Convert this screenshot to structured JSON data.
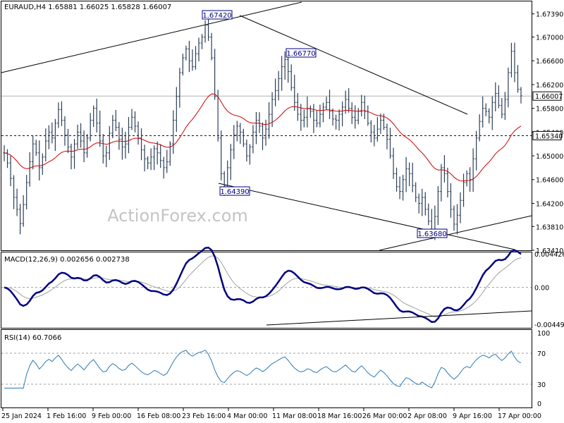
{
  "chart_data": {
    "type": "candlestick",
    "symbol_label": "EURAUD,H4",
    "ohlc": [
      "1.65881",
      "1.66025",
      "1.65828",
      "1.66007"
    ],
    "watermark": "ActionForex.com",
    "x_ticks": [
      "25 Jan 2024",
      "1 Feb 16:00",
      "9 Feb 00:00",
      "16 Feb 08:00",
      "23 Feb 16:00",
      "4 Mar 00:00",
      "11 Mar 08:00",
      "18 Mar 16:00",
      "26 Mar 00:00",
      "2 Apr 08:00",
      "9 Apr 16:00",
      "17 Apr 00:00"
    ],
    "price_axis": {
      "ylim": [
        1.6341,
        1.676
      ],
      "ticks": [
        "1.67390",
        "1.67000",
        "1.66600",
        "1.66200",
        "1.65800",
        "1.65400",
        "1.65000",
        "1.64600",
        "1.64200",
        "1.63810",
        "1.63410"
      ],
      "current_price": "1.66007",
      "support_level": "1.65340"
    },
    "annotations": [
      "1.67420",
      "1.66770",
      "1.64390",
      "1.63680"
    ],
    "series": [
      {
        "name": "close",
        "values": [
          1.6505,
          1.6488,
          1.6462,
          1.643,
          1.641,
          1.6386,
          1.6418,
          1.6455,
          1.649,
          1.652,
          1.6505,
          1.648,
          1.6498,
          1.6525,
          1.654,
          1.653,
          1.6555,
          1.6578,
          1.656,
          1.6535,
          1.6515,
          1.6498,
          1.652,
          1.654,
          1.6525,
          1.6505,
          1.653,
          1.656,
          1.658,
          1.6555,
          1.6525,
          1.65,
          1.6505,
          1.6538,
          1.656,
          1.6548,
          1.6528,
          1.6515,
          1.652,
          1.6548,
          1.6565,
          1.655,
          1.653,
          1.651,
          1.6495,
          1.6488,
          1.6498,
          1.6512,
          1.6505,
          1.6492,
          1.648,
          1.649,
          1.652,
          1.656,
          1.66,
          1.664,
          1.6665,
          1.668,
          1.666,
          1.665,
          1.6672,
          1.669,
          1.67,
          1.672,
          1.67,
          1.6665,
          1.66,
          1.653,
          1.647,
          1.645,
          1.648,
          1.651,
          1.6535,
          1.655,
          1.654,
          1.652,
          1.65,
          1.6515,
          1.654,
          1.656,
          1.655,
          1.653,
          1.6545,
          1.657,
          1.6595,
          1.661,
          1.663,
          1.665,
          1.6662,
          1.6642,
          1.6615,
          1.659,
          1.657,
          1.656,
          1.6565,
          1.658,
          1.6575,
          1.656,
          1.6555,
          1.657,
          1.6582,
          1.659,
          1.6575,
          1.6562,
          1.656,
          1.657,
          1.6582,
          1.6595,
          1.658,
          1.6565,
          1.656,
          1.6575,
          1.659,
          1.6575,
          1.6555,
          1.654,
          1.653,
          1.6545,
          1.656,
          1.6548,
          1.6528,
          1.65,
          1.647,
          1.6448,
          1.644,
          1.646,
          1.6478,
          1.647,
          1.645,
          1.643,
          1.642,
          1.643,
          1.641,
          1.639,
          1.6375,
          1.6398,
          1.644,
          1.648,
          1.647,
          1.644,
          1.641,
          1.6385,
          1.64,
          1.6425,
          1.6455,
          1.647,
          1.646,
          1.6495,
          1.653,
          1.6558,
          1.658,
          1.6575,
          1.6565,
          1.659,
          1.6605,
          1.6585,
          1.657,
          1.6595,
          1.664,
          1.6676,
          1.664,
          1.6612,
          1.6601
        ]
      },
      {
        "name": "ema",
        "values": []
      },
      {
        "name": "macd",
        "values": []
      },
      {
        "name": "rsi",
        "values": []
      }
    ],
    "macd": {
      "label": "MACD(12,26,9) 0.002656 0.002738",
      "ylim": [
        -0.00493,
        0.00426
      ],
      "ticks": [
        "0.004426",
        "0.00",
        "-0.004493"
      ]
    },
    "rsi": {
      "label": "RSI(14) 60.7066",
      "ylim": [
        0,
        100
      ],
      "ticks": [
        "100",
        "70",
        "30",
        "0"
      ]
    },
    "colors": {
      "candle": "#2c3e58",
      "ema": "#cc0000",
      "macd_line": "#000080",
      "macd_signal": "#a0a0a0",
      "rsi_line": "#2979b9",
      "trendline": "#000000",
      "grid": "#a0a0a0",
      "watermark": "#c0c0c0"
    }
  }
}
